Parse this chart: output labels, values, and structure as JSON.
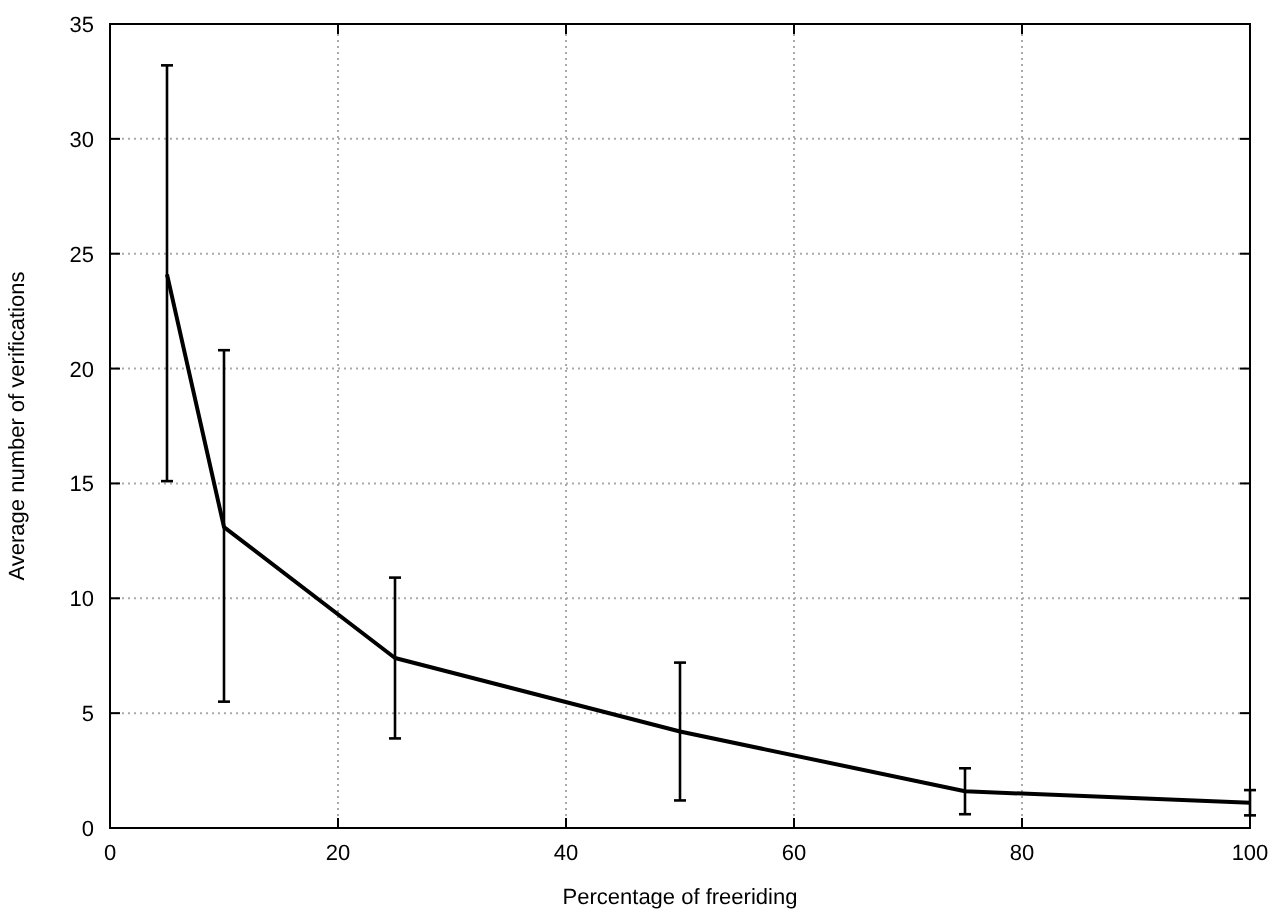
{
  "chart_data": {
    "type": "line",
    "xlabel": "Percentage of freeriding",
    "ylabel": "Average number of verifications",
    "x": [
      5,
      10,
      25,
      50,
      75,
      100
    ],
    "series": [
      {
        "color": "#000000",
        "values": [
          24.1,
          13.1,
          7.4,
          4.2,
          1.6,
          1.1
        ],
        "errors": [
          [
            15.1,
            33.2
          ],
          [
            5.5,
            20.8
          ],
          [
            3.9,
            10.9
          ],
          [
            1.2,
            7.2
          ],
          [
            0.6,
            2.6
          ],
          [
            0.55,
            1.65
          ]
        ]
      }
    ],
    "xlim": [
      0,
      100
    ],
    "xticks": [
      0,
      20,
      40,
      60,
      80,
      100
    ],
    "ylim": [
      0,
      35
    ],
    "yticks": [
      0,
      5,
      10,
      15,
      20,
      25,
      30,
      35
    ],
    "grid": true,
    "marker": "none",
    "line_style": "solid"
  }
}
